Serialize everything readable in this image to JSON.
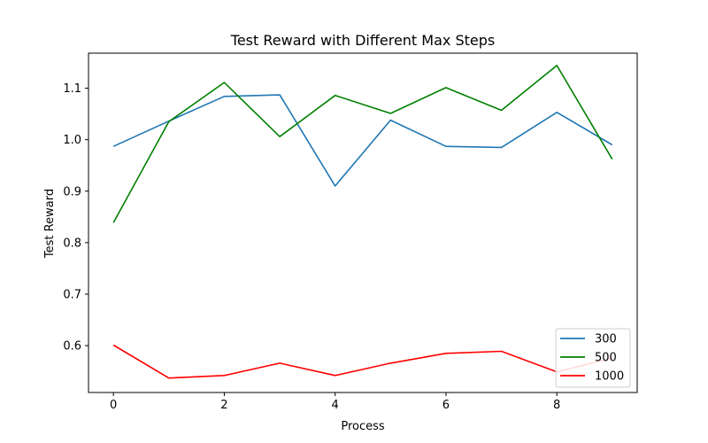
{
  "chart_data": {
    "type": "line",
    "title": "Test Reward with Different Max Steps",
    "xlabel": "Process",
    "ylabel": "Test Reward",
    "x": [
      0,
      1,
      2,
      3,
      4,
      5,
      6,
      7,
      8,
      9
    ],
    "xlim": [
      -0.45,
      9.45
    ],
    "ylim": [
      0.509,
      1.168
    ],
    "xticks": [
      0,
      2,
      4,
      6,
      8
    ],
    "yticks": [
      0.6,
      0.7,
      0.8,
      0.9,
      1.0,
      1.1
    ],
    "xtick_labels": [
      "0",
      "2",
      "4",
      "6",
      "8"
    ],
    "ytick_labels": [
      "0.6",
      "0.7",
      "0.8",
      "0.9",
      "1.0",
      "1.1"
    ],
    "grid": false,
    "legend_position": "lower-right",
    "series": [
      {
        "name": "300",
        "color": "#1f77b4",
        "values": [
          0.987,
          1.036,
          1.084,
          1.087,
          0.91,
          1.038,
          0.987,
          0.985,
          1.053,
          0.99
        ]
      },
      {
        "name": "500",
        "color": "#008000",
        "values": [
          0.839,
          1.035,
          1.111,
          1.006,
          1.086,
          1.051,
          1.101,
          1.057,
          1.144,
          0.962
        ]
      },
      {
        "name": "1000",
        "color": "#ff0000",
        "values": [
          0.601,
          0.537,
          0.542,
          0.566,
          0.542,
          0.566,
          0.585,
          0.589,
          0.549,
          0.576
        ]
      }
    ]
  }
}
